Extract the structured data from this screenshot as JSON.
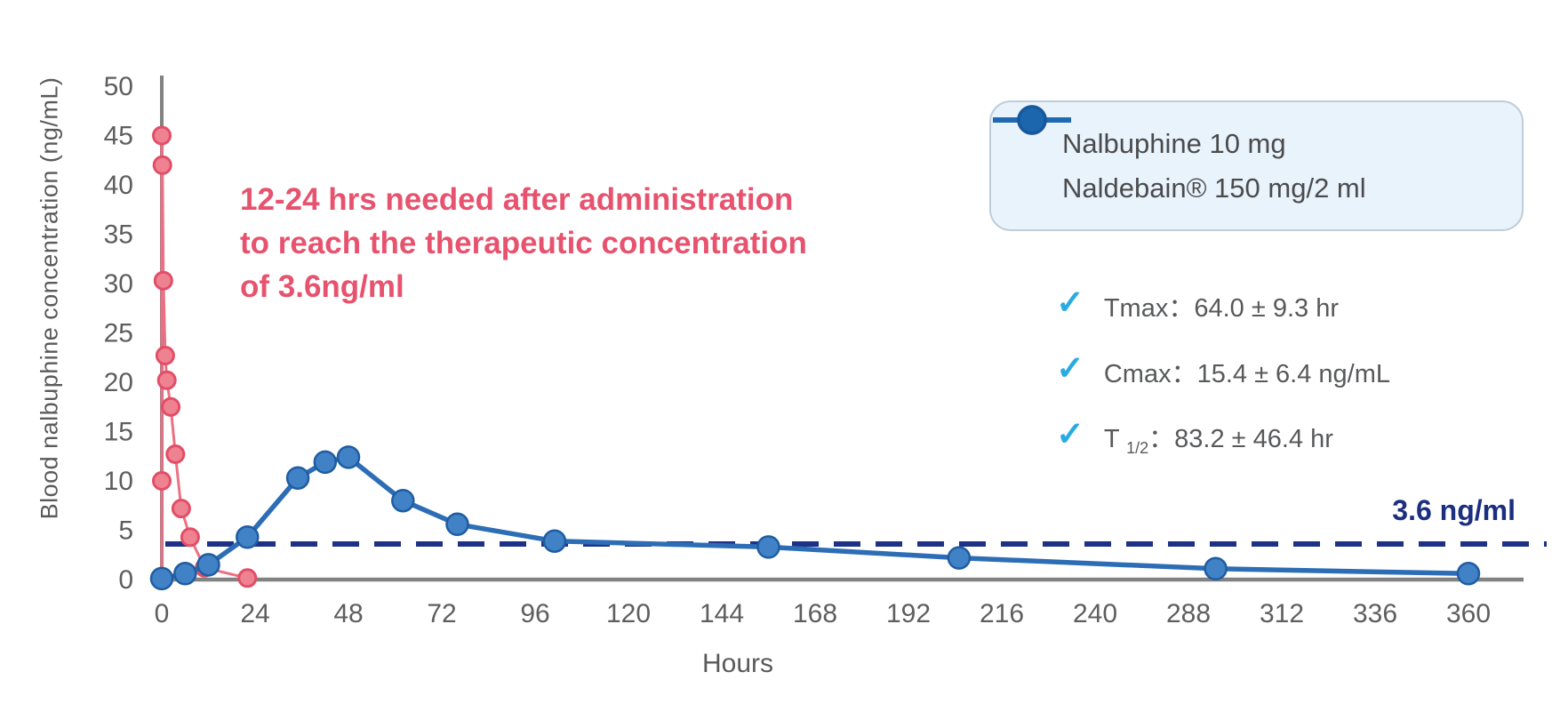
{
  "page_bg": "#ffffff",
  "chart_data": {
    "type": "line",
    "title": "",
    "xlabel": "Hours",
    "ylabel": "Blood nalbuphine concentration (ng/mL)",
    "x_ticks": [
      0,
      24,
      48,
      72,
      96,
      120,
      144,
      168,
      192,
      216,
      240,
      288,
      312,
      336,
      360
    ],
    "y_ticks": [
      0,
      5,
      10,
      15,
      20,
      25,
      30,
      35,
      40,
      45,
      50
    ],
    "ylim": [
      0,
      50
    ],
    "grid": false,
    "legend_position": "top-right",
    "axis_color": "#828282",
    "tick_label_color": "#5e5e5e",
    "threshold": {
      "value": 3.6,
      "label": "3.6 ng/ml",
      "style": "dashed",
      "color": "#1d3186"
    },
    "series": [
      {
        "name": "Nalbuphine 10 mg",
        "line_color": "#ec7083",
        "marker_fill": "#ef8290",
        "marker_stroke": "#e24e67",
        "points": [
          [
            0,
            0
          ],
          [
            0,
            10
          ],
          [
            0,
            45
          ],
          [
            0.15,
            42
          ],
          [
            0.4,
            30.3
          ],
          [
            0.9,
            22.7
          ],
          [
            1.3,
            20.2
          ],
          [
            2.3,
            17.5
          ],
          [
            3.5,
            12.7
          ],
          [
            5,
            7.2
          ],
          [
            7.3,
            4.3
          ],
          [
            11,
            1.2
          ],
          [
            22,
            0.15
          ]
        ]
      },
      {
        "name": "Naldebain® 150 mg/2 ml",
        "line_color": "#2c6db5",
        "marker_fill": "#4181c6",
        "marker_stroke": "#1f5da2",
        "points": [
          [
            0,
            0.1
          ],
          [
            6,
            0.6
          ],
          [
            12,
            1.5
          ],
          [
            22,
            4.3
          ],
          [
            35,
            10.3
          ],
          [
            42,
            11.9
          ],
          [
            48,
            12.4
          ],
          [
            62,
            8.0
          ],
          [
            76,
            5.6
          ],
          [
            101,
            3.9
          ],
          [
            156,
            3.3
          ],
          [
            205,
            2.2
          ],
          [
            295,
            1.1
          ],
          [
            360,
            0.6
          ]
        ]
      }
    ]
  },
  "annotation": {
    "line1": "12-24 hrs needed after administration",
    "line2": "to reach the therapeutic concentration",
    "line3": "of 3.6ng/ml"
  },
  "legend": {
    "items": [
      {
        "label": "Nalbuphine 10 mg",
        "line_color": "#ee7183",
        "dot_fill": "#f08392",
        "dot_stroke": "#e34e66"
      },
      {
        "label": "Naldebain® 150 mg/2 ml",
        "line_color": "#1f6ab1",
        "dot_fill": "#1c66ae",
        "dot_stroke": "#15599d"
      }
    ]
  },
  "stats": {
    "check_color": "#29abe2",
    "rows": [
      {
        "prefix": "Tmax",
        "sub": "",
        "rest": "：64.0 ± 9.3 hr"
      },
      {
        "prefix": "Cmax",
        "sub": "",
        "rest": "：15.4 ± 6.4 ng/mL"
      },
      {
        "prefix": "T",
        "sub": "1/2",
        "rest": "：83.2 ± 46.4 hr"
      }
    ],
    "check_glyph": "✓"
  }
}
